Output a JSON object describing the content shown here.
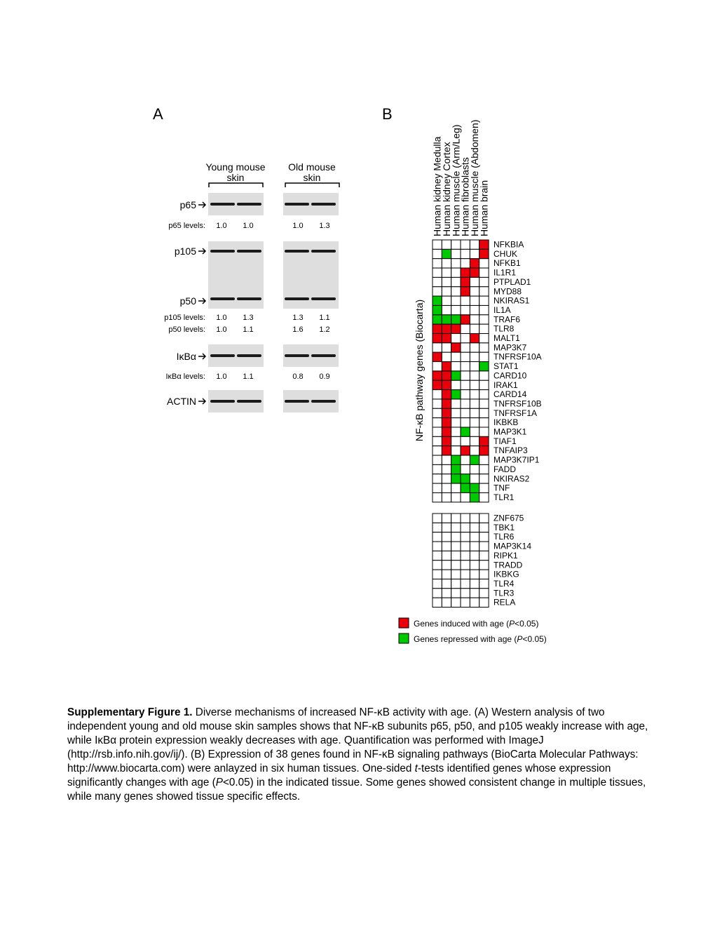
{
  "panel_a": {
    "label": "A",
    "groups": [
      [
        "Young mouse",
        "skin"
      ],
      [
        "Old mouse",
        "skin"
      ]
    ],
    "blots": [
      {
        "label": "p65"
      },
      {
        "label": "p105"
      },
      {
        "label": "p50"
      },
      {
        "label": "IκBα"
      },
      {
        "label": "ACTIN"
      }
    ],
    "levels": [
      {
        "label": "p65 levels:",
        "values": [
          "1.0",
          "1.0",
          "1.0",
          "1.3"
        ]
      },
      {
        "label": "p105 levels:",
        "values": [
          "1.0",
          "1.3",
          "1.3",
          "1.1"
        ]
      },
      {
        "label": "p50 levels:",
        "values": [
          "1.0",
          "1.1",
          "1.6",
          "1.2"
        ]
      },
      {
        "label": "IκBα levels:",
        "values": [
          "1.0",
          "1.1",
          "0.8",
          "0.9"
        ]
      }
    ]
  },
  "panel_b": {
    "label": "B",
    "axis_label": "NF-κB pathway genes (Biocarta)",
    "columns": [
      "Human kidney Medulla",
      "Human kidney Cortex",
      "Human muscle (Arm/Leg)",
      "Human fibroblasts",
      "Human muscle (Abdomen)",
      "Human brain"
    ],
    "blocks": [
      {
        "genes": [
          "NFKBIA",
          "CHUK",
          "NFKB1",
          "IL1R1",
          "PTPLAD1",
          "MYD88",
          "NKIRAS1",
          "IL1A",
          "TRAF6",
          "TLR8",
          "MALT1",
          "MAP3K7",
          "TNFRSF10A",
          "STAT1",
          "CARD10",
          "IRAK1",
          "CARD14",
          "TNFRSF10B",
          "TNFRSF1A",
          "IKBKB",
          "MAP3K1",
          "TIAF1",
          "TNFAIP3",
          "MAP3K7IP1",
          "FADD",
          "NKIRAS2",
          "TNF",
          "TLR1"
        ],
        "cells": [
          [
            0,
            0,
            0,
            0,
            0,
            1
          ],
          [
            0,
            -1,
            0,
            0,
            0,
            1
          ],
          [
            0,
            0,
            0,
            0,
            1,
            0
          ],
          [
            0,
            0,
            0,
            1,
            1,
            0
          ],
          [
            0,
            0,
            0,
            1,
            0,
            0
          ],
          [
            0,
            0,
            0,
            1,
            0,
            0
          ],
          [
            -1,
            0,
            0,
            0,
            0,
            0
          ],
          [
            -1,
            0,
            0,
            0,
            0,
            0
          ],
          [
            -1,
            -1,
            -1,
            1,
            0,
            0
          ],
          [
            1,
            1,
            1,
            0,
            0,
            0
          ],
          [
            1,
            1,
            0,
            0,
            1,
            0
          ],
          [
            0,
            0,
            1,
            0,
            0,
            0
          ],
          [
            1,
            0,
            0,
            0,
            0,
            0
          ],
          [
            0,
            1,
            0,
            0,
            0,
            -1
          ],
          [
            1,
            1,
            -1,
            0,
            0,
            0
          ],
          [
            1,
            1,
            0,
            0,
            0,
            0
          ],
          [
            0,
            1,
            -1,
            0,
            0,
            0
          ],
          [
            0,
            1,
            0,
            0,
            0,
            0
          ],
          [
            0,
            1,
            0,
            0,
            0,
            0
          ],
          [
            0,
            1,
            0,
            0,
            0,
            0
          ],
          [
            0,
            1,
            0,
            -1,
            0,
            0
          ],
          [
            0,
            1,
            0,
            0,
            0,
            1
          ],
          [
            0,
            1,
            0,
            1,
            0,
            1
          ],
          [
            0,
            0,
            -1,
            0,
            -1,
            0
          ],
          [
            0,
            0,
            -1,
            0,
            0,
            0
          ],
          [
            0,
            0,
            -1,
            -1,
            0,
            0
          ],
          [
            0,
            0,
            0,
            -1,
            -1,
            0
          ],
          [
            0,
            0,
            0,
            0,
            -1,
            0
          ]
        ]
      },
      {
        "genes": [
          "ZNF675",
          "TBK1",
          "TLR6",
          "MAP3K14",
          "RIPK1",
          "TRADD",
          "IKBKG",
          "TLR4",
          "TLR3",
          "RELA"
        ],
        "cells": [
          [
            0,
            0,
            0,
            0,
            0,
            0
          ],
          [
            0,
            0,
            0,
            0,
            0,
            0
          ],
          [
            0,
            0,
            0,
            0,
            0,
            0
          ],
          [
            0,
            0,
            0,
            0,
            0,
            0
          ],
          [
            0,
            0,
            0,
            0,
            0,
            0
          ],
          [
            0,
            0,
            0,
            0,
            0,
            0
          ],
          [
            0,
            0,
            0,
            0,
            0,
            0
          ],
          [
            0,
            0,
            0,
            0,
            0,
            0
          ],
          [
            0,
            0,
            0,
            0,
            0,
            0
          ],
          [
            0,
            0,
            0,
            0,
            0,
            0
          ]
        ]
      }
    ],
    "legend": [
      {
        "value": 1,
        "color": "#e8000b",
        "runs": [
          "Genes induced with age (",
          "P",
          "<0.05)"
        ]
      },
      {
        "value": -1,
        "color": "#00c800",
        "runs": [
          "Genes repressed with age (",
          "P",
          "<0.05)"
        ]
      }
    ]
  },
  "caption": {
    "runs": [
      {
        "text": "Supplementary Figure 1.",
        "style": "bold"
      },
      {
        "text": " Diverse mechanisms of increased NF-κB activity with age. (A) Western analysis of two independent young and old mouse skin samples shows that NF-κB subunits p65, p50, and p105 weakly increase with age, while IκBα protein expression weakly decreases with age. Quantification was performed with ImageJ (http://rsb.info.nih.gov/ij/). (B) Expression of 38 genes found in NF-κB signaling pathways (BioCarta Molecular Pathways: http://www.biocarta.com) were anlayzed in six human tissues. One-sided ",
        "style": "normal"
      },
      {
        "text": "t",
        "style": "italic"
      },
      {
        "text": "-tests identified genes whose expression significantly changes with age (",
        "style": "normal"
      },
      {
        "text": "P",
        "style": "italic"
      },
      {
        "text": "<0.05) in the indicated tissue. Some genes showed consistent change in multiple tissues, while many genes showed tissue specific effects.",
        "style": "normal"
      }
    ]
  }
}
